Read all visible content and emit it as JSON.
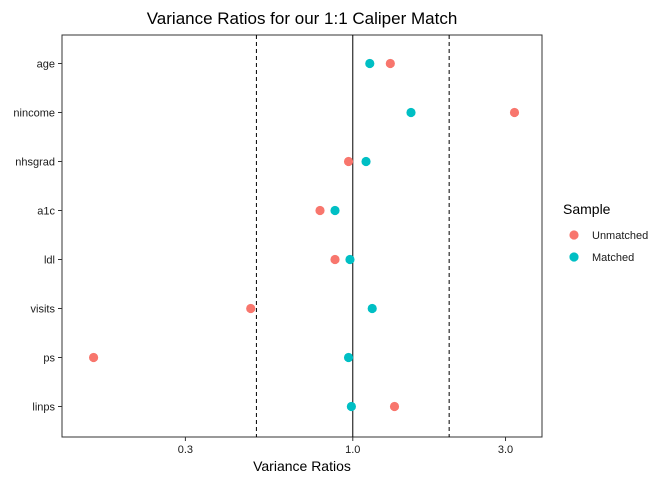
{
  "chart_data": {
    "type": "scatter",
    "title": "Variance Ratios for our 1:1 Caliper Match",
    "xlabel": "Variance Ratios",
    "ylabel": "",
    "x_scale": "log10",
    "xlim": [
      0.1235,
      3.9
    ],
    "x_ticks": [
      {
        "value": 0.3,
        "label": "0.3"
      },
      {
        "value": 1.0,
        "label": "1.0"
      },
      {
        "value": 3.0,
        "label": "3.0"
      }
    ],
    "reference_lines": [
      {
        "value": 0.5,
        "style": "dashed"
      },
      {
        "value": 1.0,
        "style": "solid"
      },
      {
        "value": 2.0,
        "style": "dashed"
      }
    ],
    "categories": [
      "age",
      "nincome",
      "nhsgrad",
      "a1c",
      "ldl",
      "visits",
      "ps",
      "linps"
    ],
    "series": [
      {
        "name": "Unmatched",
        "color": "#F8766D",
        "values": [
          1.31,
          3.2,
          0.97,
          0.79,
          0.88,
          0.48,
          0.155,
          1.35
        ]
      },
      {
        "name": "Matched",
        "color": "#00BFC4",
        "values": [
          1.13,
          1.52,
          1.1,
          0.88,
          0.98,
          1.15,
          0.97,
          0.99
        ]
      }
    ],
    "legend": {
      "title": "Sample",
      "position": "right"
    },
    "grid": false
  }
}
